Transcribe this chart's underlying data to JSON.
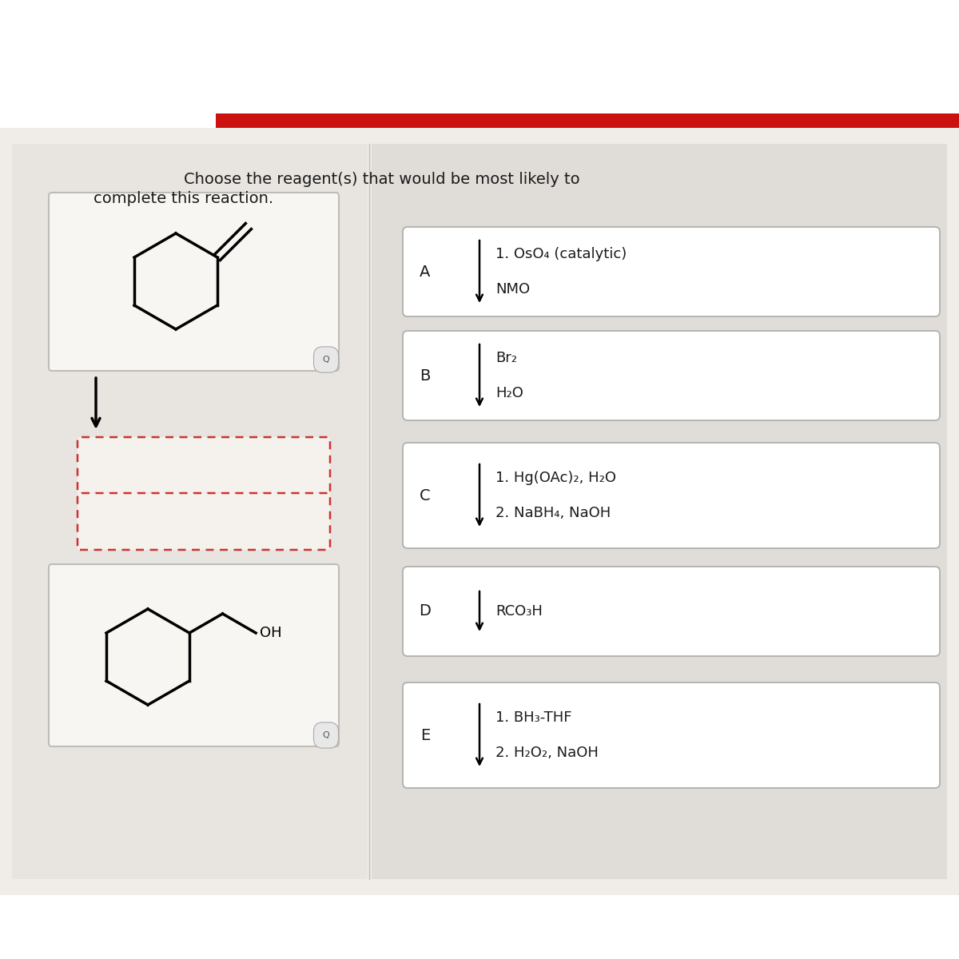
{
  "title_line1": "Choose the reagent(s) that would be most likely to",
  "title_line2": "complete this reaction.",
  "page_bg": "#f5f2ee",
  "left_bg": "#e8e5e0",
  "right_bg": "#e4e1dc",
  "white": "#ffffff",
  "red_bar": "#cc1111",
  "box_border": "#b0b0b0",
  "dashed_red": "#cc3333",
  "text_dark": "#1a1a1a",
  "options": [
    {
      "label": "A",
      "lines": [
        "1. OsO₄ (catalytic)",
        "NMO"
      ]
    },
    {
      "label": "B",
      "lines": [
        "Br₂",
        "H₂O"
      ]
    },
    {
      "label": "C",
      "lines": [
        "1. Hg(OAc)₂, H₂O",
        "2. NaBH₄, NaOH"
      ]
    },
    {
      "label": "D",
      "lines": [
        "RCO₃H"
      ]
    },
    {
      "label": "E",
      "lines": [
        "1. BH₃-THF",
        "2. H₂O₂, NaOH"
      ]
    }
  ]
}
